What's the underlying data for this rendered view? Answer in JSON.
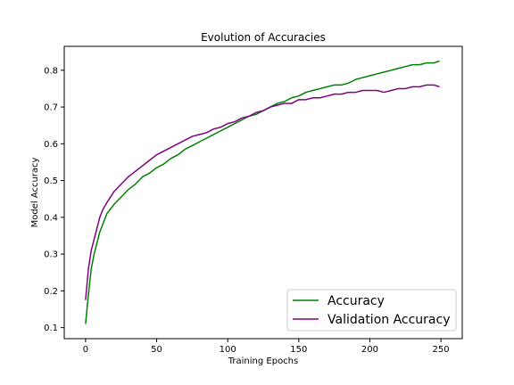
{
  "chart_data": {
    "type": "line",
    "title": "Evolution of Accuracies",
    "xlabel": "Training Epochs",
    "ylabel": "Model Accuracy",
    "xlim": [
      -15,
      265
    ],
    "ylim": [
      0.07,
      0.865
    ],
    "xticks": [
      0,
      50,
      100,
      150,
      200,
      250
    ],
    "yticks": [
      0.1,
      0.2,
      0.3,
      0.4,
      0.5,
      0.6,
      0.7,
      0.8
    ],
    "grid": false,
    "legend_position": "lower-right",
    "series": [
      {
        "name": "Accuracy",
        "color": "#008000",
        "x": [
          0,
          2,
          4,
          6,
          8,
          10,
          12,
          15,
          20,
          25,
          30,
          35,
          40,
          45,
          50,
          55,
          60,
          65,
          70,
          75,
          80,
          85,
          90,
          95,
          100,
          105,
          110,
          115,
          120,
          125,
          130,
          135,
          140,
          145,
          150,
          155,
          160,
          165,
          170,
          175,
          180,
          185,
          190,
          195,
          200,
          205,
          210,
          215,
          220,
          225,
          230,
          235,
          240,
          245,
          249
        ],
        "values": [
          0.11,
          0.19,
          0.26,
          0.3,
          0.33,
          0.36,
          0.38,
          0.41,
          0.435,
          0.455,
          0.475,
          0.49,
          0.51,
          0.52,
          0.535,
          0.545,
          0.56,
          0.57,
          0.585,
          0.595,
          0.605,
          0.615,
          0.625,
          0.635,
          0.645,
          0.655,
          0.665,
          0.675,
          0.68,
          0.69,
          0.7,
          0.71,
          0.715,
          0.725,
          0.73,
          0.74,
          0.745,
          0.75,
          0.755,
          0.76,
          0.76,
          0.765,
          0.775,
          0.78,
          0.785,
          0.79,
          0.795,
          0.8,
          0.805,
          0.81,
          0.815,
          0.815,
          0.82,
          0.82,
          0.825
        ]
      },
      {
        "name": "Validation Accuracy",
        "color": "#800080",
        "x": [
          0,
          2,
          4,
          6,
          8,
          10,
          12,
          15,
          20,
          25,
          30,
          35,
          40,
          45,
          50,
          55,
          60,
          65,
          70,
          75,
          80,
          85,
          90,
          95,
          100,
          105,
          110,
          115,
          120,
          125,
          130,
          135,
          140,
          145,
          150,
          155,
          160,
          165,
          170,
          175,
          180,
          185,
          190,
          195,
          200,
          205,
          210,
          215,
          220,
          225,
          230,
          235,
          240,
          245,
          249
        ],
        "values": [
          0.175,
          0.26,
          0.31,
          0.34,
          0.37,
          0.4,
          0.42,
          0.44,
          0.47,
          0.49,
          0.51,
          0.525,
          0.54,
          0.555,
          0.57,
          0.58,
          0.59,
          0.6,
          0.61,
          0.62,
          0.625,
          0.63,
          0.64,
          0.645,
          0.655,
          0.66,
          0.67,
          0.675,
          0.685,
          0.69,
          0.7,
          0.705,
          0.71,
          0.71,
          0.72,
          0.72,
          0.725,
          0.725,
          0.73,
          0.735,
          0.735,
          0.74,
          0.74,
          0.745,
          0.745,
          0.745,
          0.74,
          0.745,
          0.75,
          0.75,
          0.755,
          0.755,
          0.76,
          0.76,
          0.755
        ]
      }
    ]
  }
}
